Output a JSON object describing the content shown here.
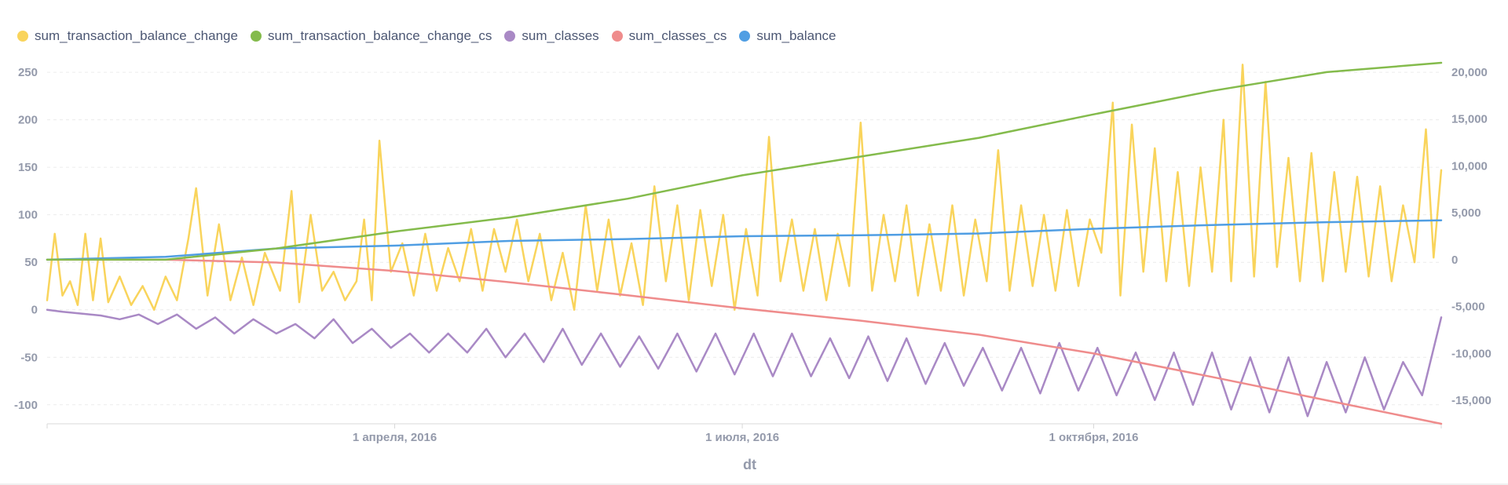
{
  "chart_data": {
    "type": "line",
    "x_axis": {
      "title": "dt",
      "range": [
        "2016-01-01",
        "2016-12-31"
      ],
      "ticks": [
        {
          "date": "2016-04-01",
          "label": "1 апреля, 2016"
        },
        {
          "date": "2016-07-01",
          "label": "1 июля, 2016"
        },
        {
          "date": "2016-10-01",
          "label": "1 октября, 2016"
        }
      ]
    },
    "y_left": {
      "ticks": [
        250,
        200,
        150,
        100,
        50,
        0,
        -50,
        -100
      ],
      "tick_labels": [
        "250",
        "200",
        "150",
        "100",
        "50",
        "0",
        "-50",
        "-100"
      ],
      "range": [
        -120,
        260
      ]
    },
    "y_right": {
      "ticks": [
        20000,
        15000,
        10000,
        5000,
        0,
        -5000,
        -10000,
        -15000
      ],
      "tick_labels": [
        "20,000",
        "15,000",
        "10,000",
        "5,000",
        "0",
        "-5,000",
        "-10,000",
        "-15,000"
      ],
      "range": [
        -17500,
        21000
      ]
    },
    "grid": "horizontal dashed",
    "legend_position": "top-left",
    "series": [
      {
        "name": "sum_transaction_balance_change",
        "color": "#F9D45C",
        "axis": "left",
        "points": [
          [
            "2016-01-01",
            10
          ],
          [
            "2016-01-03",
            80
          ],
          [
            "2016-01-05",
            15
          ],
          [
            "2016-01-07",
            30
          ],
          [
            "2016-01-09",
            5
          ],
          [
            "2016-01-11",
            80
          ],
          [
            "2016-01-13",
            10
          ],
          [
            "2016-01-15",
            75
          ],
          [
            "2016-01-17",
            8
          ],
          [
            "2016-01-20",
            35
          ],
          [
            "2016-01-23",
            5
          ],
          [
            "2016-01-26",
            25
          ],
          [
            "2016-01-29",
            0
          ],
          [
            "2016-02-01",
            35
          ],
          [
            "2016-02-04",
            10
          ],
          [
            "2016-02-07",
            75
          ],
          [
            "2016-02-09",
            128
          ],
          [
            "2016-02-12",
            15
          ],
          [
            "2016-02-15",
            90
          ],
          [
            "2016-02-18",
            10
          ],
          [
            "2016-02-21",
            55
          ],
          [
            "2016-02-24",
            5
          ],
          [
            "2016-02-27",
            60
          ],
          [
            "2016-03-02",
            20
          ],
          [
            "2016-03-05",
            125
          ],
          [
            "2016-03-07",
            8
          ],
          [
            "2016-03-10",
            100
          ],
          [
            "2016-03-13",
            20
          ],
          [
            "2016-03-16",
            40
          ],
          [
            "2016-03-19",
            10
          ],
          [
            "2016-03-22",
            30
          ],
          [
            "2016-03-24",
            95
          ],
          [
            "2016-03-26",
            10
          ],
          [
            "2016-03-28",
            178
          ],
          [
            "2016-03-31",
            40
          ],
          [
            "2016-04-03",
            70
          ],
          [
            "2016-04-06",
            15
          ],
          [
            "2016-04-09",
            80
          ],
          [
            "2016-04-12",
            20
          ],
          [
            "2016-04-15",
            65
          ],
          [
            "2016-04-18",
            30
          ],
          [
            "2016-04-21",
            85
          ],
          [
            "2016-04-24",
            20
          ],
          [
            "2016-04-27",
            85
          ],
          [
            "2016-04-30",
            40
          ],
          [
            "2016-05-03",
            95
          ],
          [
            "2016-05-06",
            30
          ],
          [
            "2016-05-09",
            80
          ],
          [
            "2016-05-12",
            10
          ],
          [
            "2016-05-15",
            60
          ],
          [
            "2016-05-18",
            0
          ],
          [
            "2016-05-21",
            110
          ],
          [
            "2016-05-24",
            20
          ],
          [
            "2016-05-27",
            95
          ],
          [
            "2016-05-30",
            15
          ],
          [
            "2016-06-02",
            70
          ],
          [
            "2016-06-05",
            5
          ],
          [
            "2016-06-08",
            130
          ],
          [
            "2016-06-11",
            30
          ],
          [
            "2016-06-14",
            110
          ],
          [
            "2016-06-17",
            10
          ],
          [
            "2016-06-20",
            105
          ],
          [
            "2016-06-23",
            25
          ],
          [
            "2016-06-26",
            100
          ],
          [
            "2016-06-29",
            0
          ],
          [
            "2016-07-02",
            85
          ],
          [
            "2016-07-05",
            15
          ],
          [
            "2016-07-08",
            182
          ],
          [
            "2016-07-11",
            30
          ],
          [
            "2016-07-14",
            95
          ],
          [
            "2016-07-17",
            20
          ],
          [
            "2016-07-20",
            85
          ],
          [
            "2016-07-23",
            10
          ],
          [
            "2016-07-26",
            80
          ],
          [
            "2016-07-29",
            25
          ],
          [
            "2016-08-01",
            197
          ],
          [
            "2016-08-04",
            20
          ],
          [
            "2016-08-07",
            100
          ],
          [
            "2016-08-10",
            30
          ],
          [
            "2016-08-13",
            110
          ],
          [
            "2016-08-16",
            15
          ],
          [
            "2016-08-19",
            90
          ],
          [
            "2016-08-22",
            20
          ],
          [
            "2016-08-25",
            110
          ],
          [
            "2016-08-28",
            15
          ],
          [
            "2016-08-31",
            95
          ],
          [
            "2016-09-03",
            30
          ],
          [
            "2016-09-06",
            168
          ],
          [
            "2016-09-09",
            20
          ],
          [
            "2016-09-12",
            110
          ],
          [
            "2016-09-15",
            25
          ],
          [
            "2016-09-18",
            100
          ],
          [
            "2016-09-21",
            20
          ],
          [
            "2016-09-24",
            105
          ],
          [
            "2016-09-27",
            25
          ],
          [
            "2016-09-30",
            95
          ],
          [
            "2016-10-03",
            60
          ],
          [
            "2016-10-06",
            218
          ],
          [
            "2016-10-08",
            15
          ],
          [
            "2016-10-11",
            195
          ],
          [
            "2016-10-14",
            40
          ],
          [
            "2016-10-17",
            170
          ],
          [
            "2016-10-20",
            30
          ],
          [
            "2016-10-23",
            145
          ],
          [
            "2016-10-26",
            25
          ],
          [
            "2016-10-29",
            150
          ],
          [
            "2016-11-01",
            40
          ],
          [
            "2016-11-04",
            200
          ],
          [
            "2016-11-06",
            30
          ],
          [
            "2016-11-09",
            258
          ],
          [
            "2016-11-12",
            35
          ],
          [
            "2016-11-15",
            240
          ],
          [
            "2016-11-18",
            45
          ],
          [
            "2016-11-21",
            160
          ],
          [
            "2016-11-24",
            30
          ],
          [
            "2016-11-27",
            165
          ],
          [
            "2016-11-30",
            30
          ],
          [
            "2016-12-03",
            145
          ],
          [
            "2016-12-06",
            40
          ],
          [
            "2016-12-09",
            140
          ],
          [
            "2016-12-12",
            35
          ],
          [
            "2016-12-15",
            130
          ],
          [
            "2016-12-18",
            30
          ],
          [
            "2016-12-21",
            110
          ],
          [
            "2016-12-24",
            50
          ],
          [
            "2016-12-27",
            190
          ],
          [
            "2016-12-29",
            55
          ],
          [
            "2016-12-31",
            147
          ]
        ]
      },
      {
        "name": "sum_transaction_balance_change_cs",
        "color": "#84BB4C",
        "axis": "right",
        "points": [
          [
            "2016-01-01",
            0
          ],
          [
            "2016-02-01",
            0
          ],
          [
            "2016-03-01",
            1200
          ],
          [
            "2016-04-01",
            3000
          ],
          [
            "2016-05-01",
            4500
          ],
          [
            "2016-06-01",
            6500
          ],
          [
            "2016-07-01",
            9000
          ],
          [
            "2016-08-01",
            11000
          ],
          [
            "2016-09-01",
            13000
          ],
          [
            "2016-10-01",
            15500
          ],
          [
            "2016-11-01",
            18000
          ],
          [
            "2016-12-01",
            20000
          ],
          [
            "2016-12-31",
            21000
          ]
        ]
      },
      {
        "name": "sum_classes",
        "color": "#A989C5",
        "axis": "left",
        "points": [
          [
            "2016-01-01",
            0
          ],
          [
            "2016-01-05",
            -2
          ],
          [
            "2016-01-10",
            -4
          ],
          [
            "2016-01-15",
            -6
          ],
          [
            "2016-01-20",
            -10
          ],
          [
            "2016-01-25",
            -5
          ],
          [
            "2016-01-30",
            -15
          ],
          [
            "2016-02-04",
            -5
          ],
          [
            "2016-02-09",
            -20
          ],
          [
            "2016-02-14",
            -8
          ],
          [
            "2016-02-19",
            -25
          ],
          [
            "2016-02-24",
            -10
          ],
          [
            "2016-03-01",
            -25
          ],
          [
            "2016-03-06",
            -15
          ],
          [
            "2016-03-11",
            -30
          ],
          [
            "2016-03-16",
            -10
          ],
          [
            "2016-03-21",
            -35
          ],
          [
            "2016-03-26",
            -20
          ],
          [
            "2016-03-31",
            -40
          ],
          [
            "2016-04-05",
            -25
          ],
          [
            "2016-04-10",
            -45
          ],
          [
            "2016-04-15",
            -25
          ],
          [
            "2016-04-20",
            -45
          ],
          [
            "2016-04-25",
            -20
          ],
          [
            "2016-04-30",
            -50
          ],
          [
            "2016-05-05",
            -25
          ],
          [
            "2016-05-10",
            -55
          ],
          [
            "2016-05-15",
            -20
          ],
          [
            "2016-05-20",
            -58
          ],
          [
            "2016-05-25",
            -25
          ],
          [
            "2016-05-30",
            -60
          ],
          [
            "2016-06-04",
            -28
          ],
          [
            "2016-06-09",
            -62
          ],
          [
            "2016-06-14",
            -25
          ],
          [
            "2016-06-19",
            -65
          ],
          [
            "2016-06-24",
            -25
          ],
          [
            "2016-06-29",
            -68
          ],
          [
            "2016-07-04",
            -25
          ],
          [
            "2016-07-09",
            -70
          ],
          [
            "2016-07-14",
            -25
          ],
          [
            "2016-07-19",
            -70
          ],
          [
            "2016-07-24",
            -30
          ],
          [
            "2016-07-29",
            -72
          ],
          [
            "2016-08-03",
            -28
          ],
          [
            "2016-08-08",
            -75
          ],
          [
            "2016-08-13",
            -30
          ],
          [
            "2016-08-18",
            -78
          ],
          [
            "2016-08-23",
            -35
          ],
          [
            "2016-08-28",
            -80
          ],
          [
            "2016-09-02",
            -40
          ],
          [
            "2016-09-07",
            -85
          ],
          [
            "2016-09-12",
            -40
          ],
          [
            "2016-09-17",
            -88
          ],
          [
            "2016-09-22",
            -35
          ],
          [
            "2016-09-27",
            -85
          ],
          [
            "2016-10-02",
            -40
          ],
          [
            "2016-10-07",
            -90
          ],
          [
            "2016-10-12",
            -45
          ],
          [
            "2016-10-17",
            -95
          ],
          [
            "2016-10-22",
            -45
          ],
          [
            "2016-10-27",
            -100
          ],
          [
            "2016-11-01",
            -45
          ],
          [
            "2016-11-06",
            -105
          ],
          [
            "2016-11-11",
            -50
          ],
          [
            "2016-11-16",
            -108
          ],
          [
            "2016-11-21",
            -50
          ],
          [
            "2016-11-26",
            -112
          ],
          [
            "2016-12-01",
            -55
          ],
          [
            "2016-12-06",
            -108
          ],
          [
            "2016-12-11",
            -50
          ],
          [
            "2016-12-16",
            -105
          ],
          [
            "2016-12-21",
            -55
          ],
          [
            "2016-12-26",
            -90
          ],
          [
            "2016-12-31",
            -8
          ]
        ]
      },
      {
        "name": "sum_classes_cs",
        "color": "#EF8C8C",
        "axis": "right",
        "points": [
          [
            "2016-01-01",
            0
          ],
          [
            "2016-02-01",
            0
          ],
          [
            "2016-03-01",
            -300
          ],
          [
            "2016-04-01",
            -1200
          ],
          [
            "2016-05-01",
            -2400
          ],
          [
            "2016-06-01",
            -3800
          ],
          [
            "2016-07-01",
            -5200
          ],
          [
            "2016-08-01",
            -6500
          ],
          [
            "2016-09-01",
            -8000
          ],
          [
            "2016-10-01",
            -10000
          ],
          [
            "2016-11-01",
            -12500
          ],
          [
            "2016-12-01",
            -15000
          ],
          [
            "2016-12-31",
            -17500
          ]
        ]
      },
      {
        "name": "sum_balance",
        "color": "#509EE3",
        "axis": "right",
        "points": [
          [
            "2016-01-01",
            0
          ],
          [
            "2016-02-01",
            300
          ],
          [
            "2016-03-01",
            1200
          ],
          [
            "2016-04-01",
            1500
          ],
          [
            "2016-05-01",
            2000
          ],
          [
            "2016-06-01",
            2200
          ],
          [
            "2016-07-01",
            2500
          ],
          [
            "2016-08-01",
            2600
          ],
          [
            "2016-09-01",
            2800
          ],
          [
            "2016-10-01",
            3300
          ],
          [
            "2016-11-01",
            3700
          ],
          [
            "2016-12-01",
            4000
          ],
          [
            "2016-12-31",
            4200
          ]
        ]
      }
    ]
  }
}
